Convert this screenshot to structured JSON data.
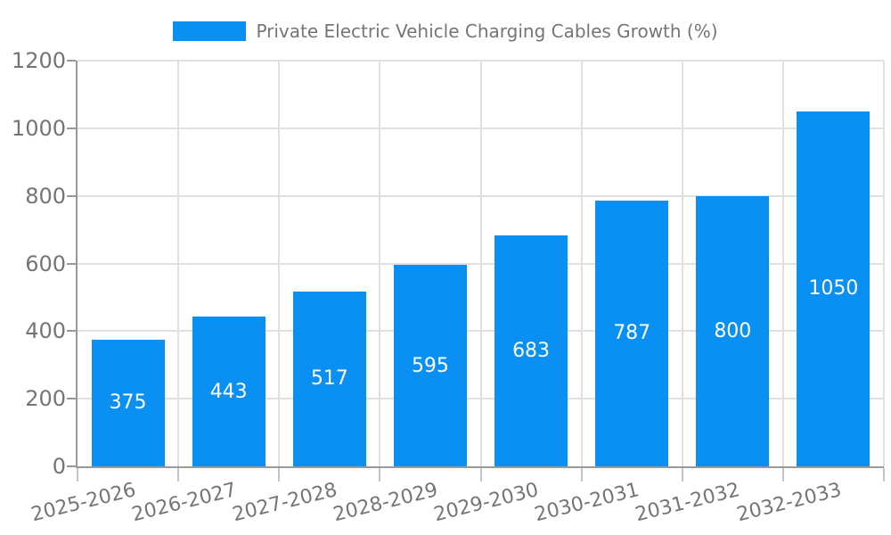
{
  "legend": {
    "label": "Private Electric Vehicle Charging Cables Growth (%)"
  },
  "colors": {
    "bar": "#0A8FF2",
    "axis_label_text": "#757575",
    "legend_text": "#757575",
    "axis_line": "#999999",
    "x_tick": "#c4c4c4",
    "gridline": "#e0e0e0",
    "bar_label_text": "#ffffff",
    "background": "#ffffff"
  },
  "chart_data": {
    "type": "bar",
    "title": "Private Electric Vehicle Charging Cables Growth (%)",
    "categories": [
      "2025-2026",
      "2026-2027",
      "2027-2028",
      "2028-2029",
      "2029-2030",
      "2030-2031",
      "2031-2032",
      "2032-2033"
    ],
    "values": [
      375,
      443,
      517,
      595,
      683,
      787,
      800,
      1050
    ],
    "xlabel": "",
    "ylabel": "",
    "ylim": [
      0,
      1200
    ],
    "ytick_step": 200,
    "yticks": [
      0,
      200,
      400,
      600,
      800,
      1000,
      1200
    ],
    "grid": true,
    "legend_position": "top-center",
    "bar_label_position": "inside-center",
    "x_tick_label_rotation_deg": -14
  }
}
